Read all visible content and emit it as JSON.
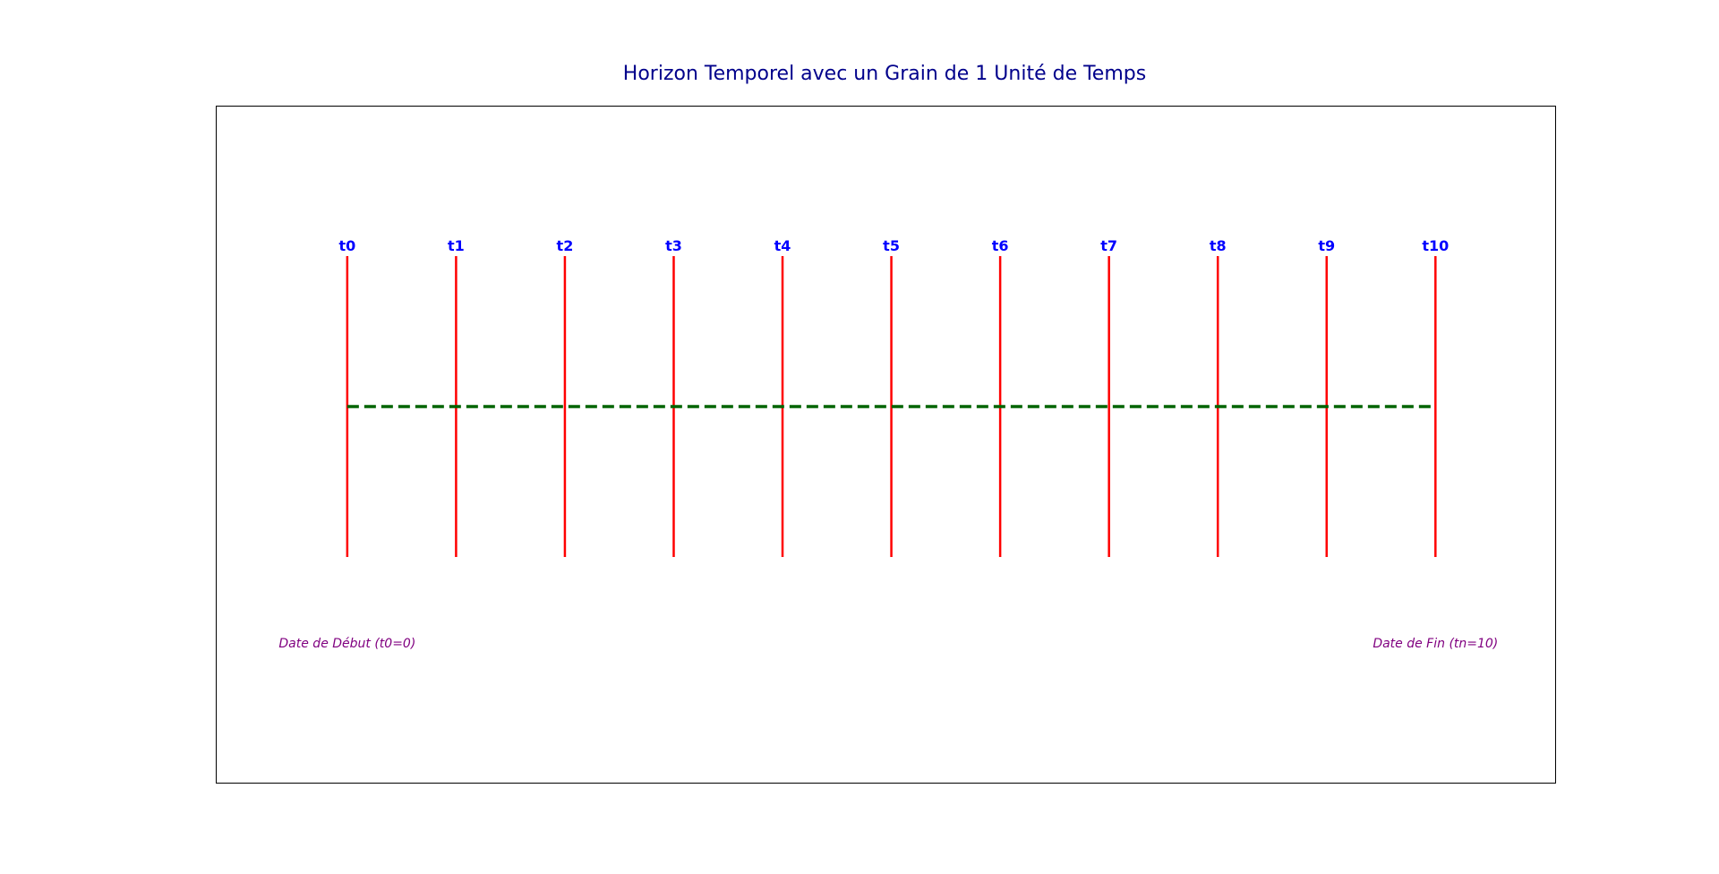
{
  "chart_data": {
    "type": "line",
    "title": "Horizon Temporel avec un Grain de 1 Unité de Temps",
    "xlabel": "",
    "ylabel": "",
    "grid": false,
    "axes_visible": false,
    "xlim": [
      -1.2,
      11.1
    ],
    "ylim": [
      -1.25,
      1
    ],
    "ticks": [
      {
        "label": "t0",
        "x": 0
      },
      {
        "label": "t1",
        "x": 1
      },
      {
        "label": "t2",
        "x": 2
      },
      {
        "label": "t3",
        "x": 3
      },
      {
        "label": "t4",
        "x": 4
      },
      {
        "label": "t5",
        "x": 5
      },
      {
        "label": "t6",
        "x": 6
      },
      {
        "label": "t7",
        "x": 7
      },
      {
        "label": "t8",
        "x": 8
      },
      {
        "label": "t9",
        "x": 9
      },
      {
        "label": "t10",
        "x": 10
      }
    ],
    "vertical_markers": {
      "y_from": -0.5,
      "y_to": 0.5,
      "color": "#ff0000",
      "style": "solid"
    },
    "horizontal_line": {
      "x_from": 0,
      "x_to": 10,
      "y": 0,
      "color": "#006400",
      "style": "dashed"
    },
    "annotations": [
      {
        "text": "Date de Début (t0=0)",
        "x": 0,
        "y": -0.8
      },
      {
        "text": "Date de Fin (tn=10)",
        "x": 10,
        "y": -0.8
      }
    ],
    "colors": {
      "title": "#00008b",
      "tick_labels": "#0000ff",
      "annotations": "#800080",
      "markers": "#ff0000",
      "horizon_line": "#006400",
      "frame": "#000000"
    }
  }
}
